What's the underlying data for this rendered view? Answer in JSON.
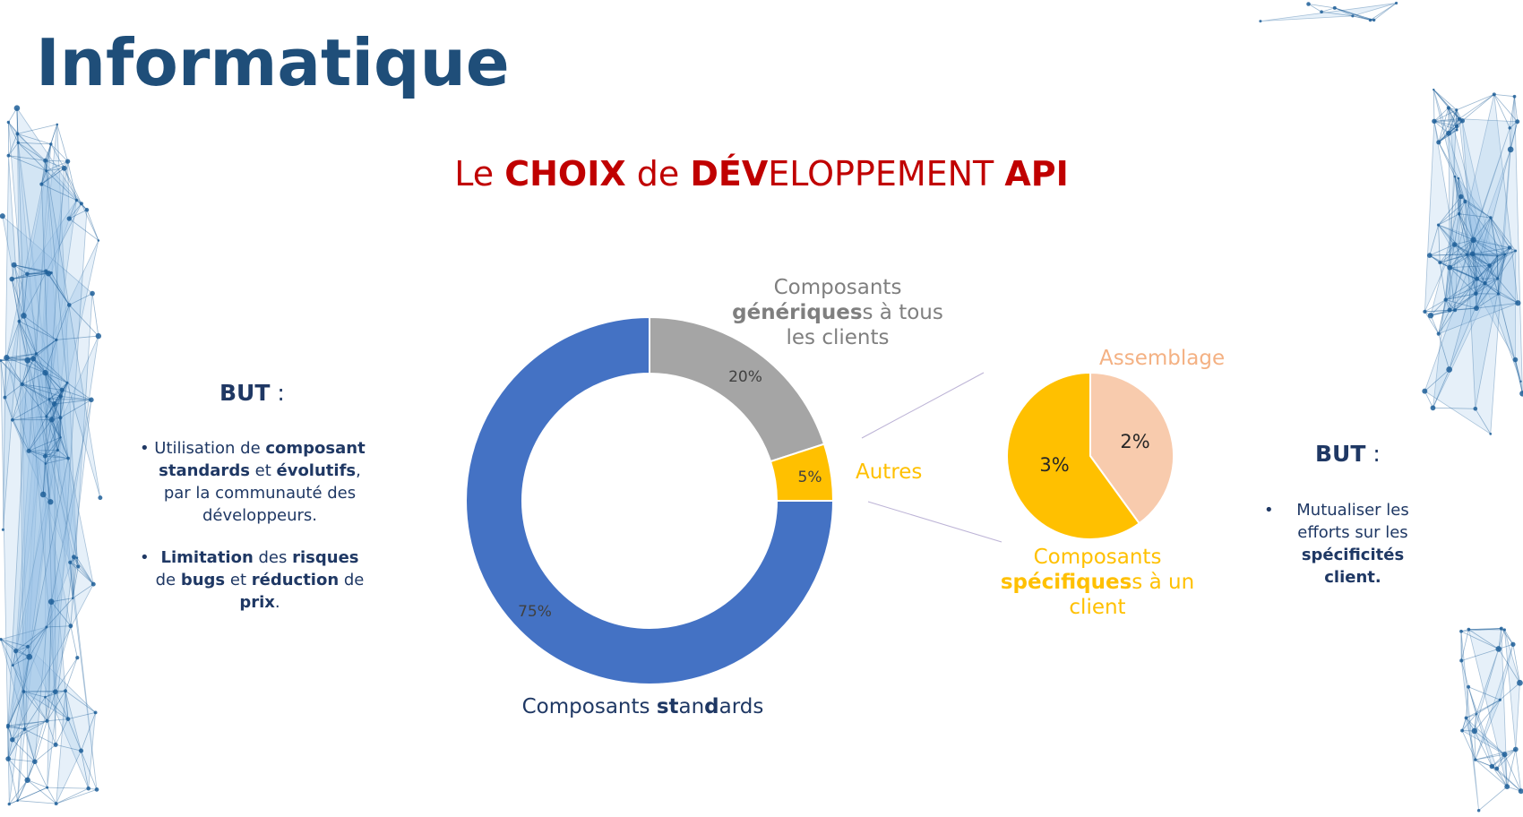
{
  "slide": {
    "title": "Informatique",
    "chart_title": {
      "p1": "Le ",
      "p2": "CHOIX",
      "p3": " de ",
      "p4": "DÉV",
      "p5": "ELOPPEMENT ",
      "p6": "API"
    }
  },
  "left_panel": {
    "heading": "BUT",
    "heading_suffix": " :",
    "bullets": [
      {
        "parts": [
          "Utilisation de ",
          "composant standards",
          " et ",
          "évolutifs",
          ", par la communauté des développeurs."
        ]
      },
      {
        "parts": [
          "Limitation",
          " des ",
          "risques",
          " de ",
          "bugs",
          " et ",
          "réduction",
          " de ",
          "prix",
          "."
        ]
      }
    ]
  },
  "right_panel": {
    "heading": "BUT",
    "heading_suffix": " :",
    "bullets": [
      {
        "parts": [
          "Mutualiser les efforts sur les ",
          "spécificités client."
        ]
      }
    ]
  },
  "labels": {
    "standards": {
      "p1": "Composants ",
      "p2": "st",
      "p3": "an",
      "p4": "d",
      "p5": "ards"
    },
    "generiques": {
      "line1": "Composants",
      "line2_bold": "génériques",
      "line2_rest": "s à tous",
      "line3": "les clients"
    },
    "autres": "Autres",
    "assemblage": "Assemblage",
    "specifiques": {
      "line1": "Composants",
      "line2_bold": "spécifiques",
      "line2_rest": "s à un",
      "line3": "client"
    }
  },
  "chart_data": [
    {
      "type": "pie",
      "style": "donut",
      "categories": [
        "Composants standards",
        "Composants génériques à tous les clients",
        "Autres"
      ],
      "values": [
        75,
        20,
        5
      ],
      "data_labels": [
        "75%",
        "20%",
        "5%"
      ],
      "colors": [
        "#4472c4",
        "#a5a5a5",
        "#ffc000"
      ],
      "title": "Le CHOIX de DÉVELOPPEMENT API"
    },
    {
      "type": "pie",
      "categories": [
        "Assemblage",
        "Composants spécifiques à un client"
      ],
      "values": [
        2,
        3
      ],
      "data_labels": [
        "2%",
        "3%"
      ],
      "colors": [
        "#f8cbad",
        "#ffc000"
      ]
    }
  ],
  "colors": {
    "title": "#1f4e79",
    "chart_title": "#c00000",
    "text_dark": "#1f3864",
    "label_grey": "#7f7f7f",
    "label_orange": "#f4b183",
    "label_yellow": "#ffc000",
    "decoration": "#1f5f99"
  }
}
